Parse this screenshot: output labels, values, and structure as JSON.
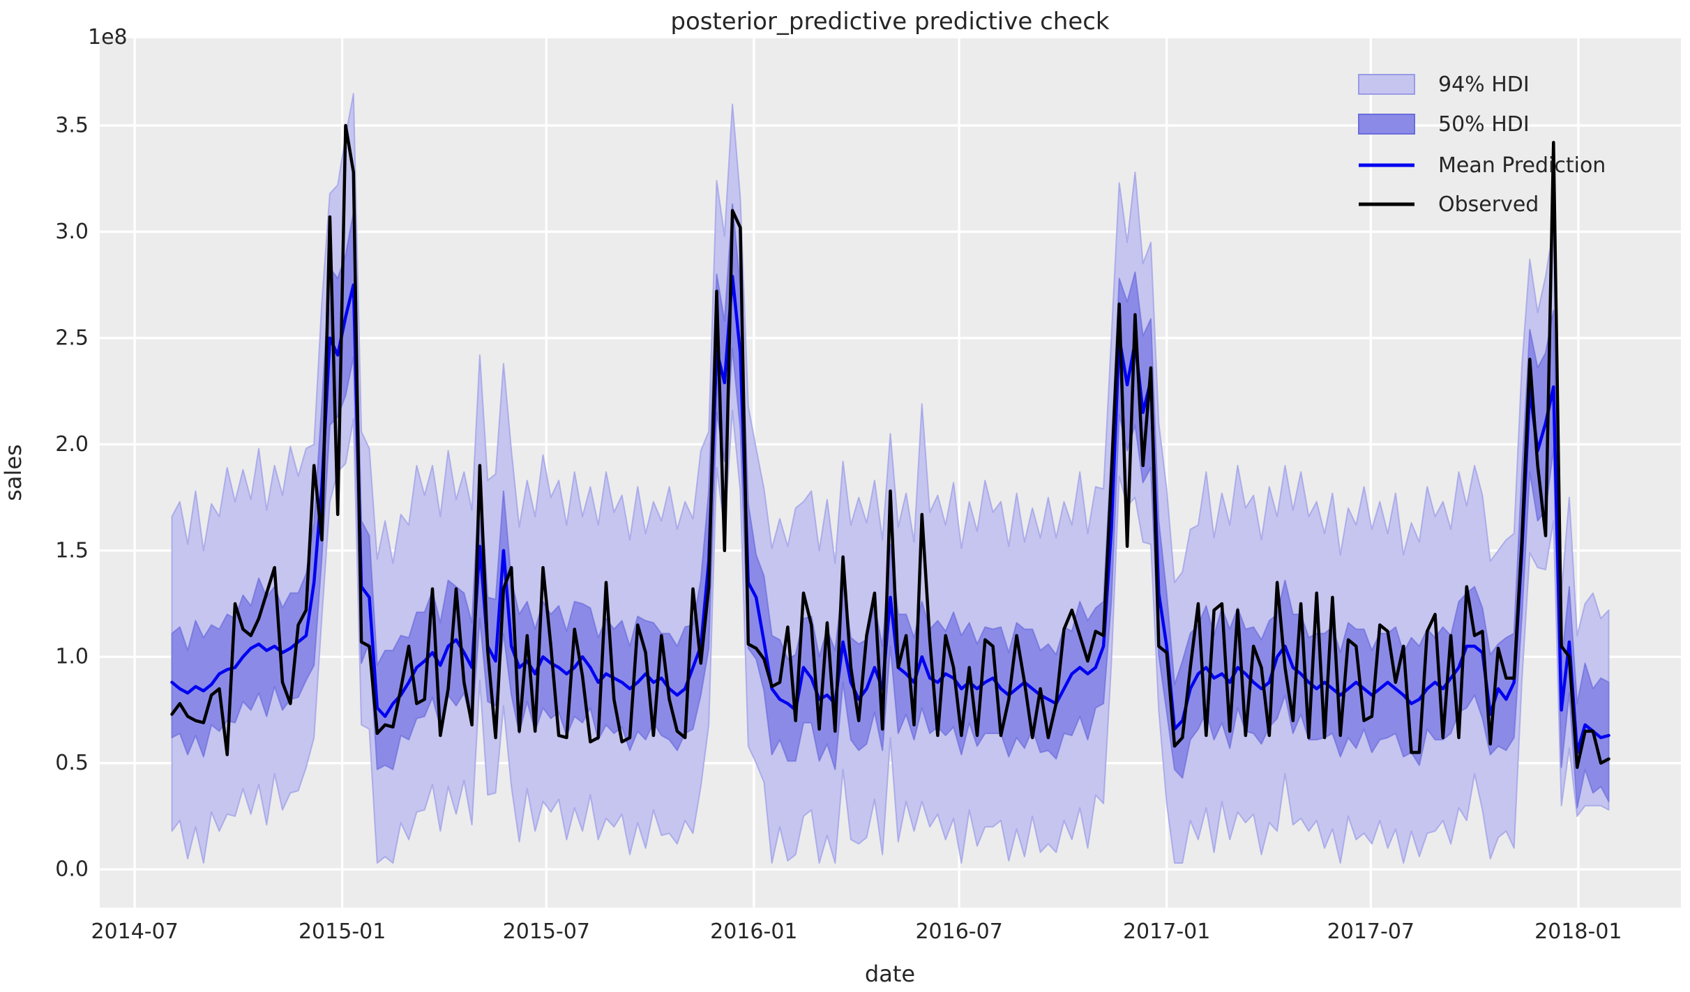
{
  "figure": {
    "title": "posterior_predictive predictive check"
  },
  "colors": {
    "background": "#ffffff",
    "axes_bg": "#ececec",
    "grid": "#ffffff",
    "hdi94_fill": "#c5c5ef",
    "hdi94_edge": "#9a9ae8",
    "hdi50_fill": "#8b8be7",
    "hdi50_edge": "#6b6bdd",
    "mean_line": "#0101f0",
    "observed_line": "#000000",
    "text": "#262626"
  },
  "chart_data": {
    "type": "line",
    "title": "posterior_predictive predictive check",
    "xlabel": "date",
    "ylabel": "sales",
    "y_offset_text": "1e8",
    "grid": true,
    "legend_position": "upper right",
    "value_unit": 100000000,
    "x_axis_origin_date": "2014-07-01",
    "x_start_day_offset": 33,
    "x_freq_days": 7,
    "n_points": 183,
    "xlim_days": [
      -31,
      1371
    ],
    "ylim": [
      -0.18,
      3.91
    ],
    "x_ticks": [
      {
        "label": "2014-07",
        "day": 0
      },
      {
        "label": "2015-01",
        "day": 184
      },
      {
        "label": "2015-07",
        "day": 365
      },
      {
        "label": "2016-01",
        "day": 549
      },
      {
        "label": "2016-07",
        "day": 731
      },
      {
        "label": "2017-01",
        "day": 915
      },
      {
        "label": "2017-07",
        "day": 1096
      },
      {
        "label": "2018-01",
        "day": 1280
      }
    ],
    "y_tick_labels": [
      "0.0",
      "0.5",
      "1.0",
      "1.5",
      "2.0",
      "2.5",
      "3.0",
      "3.5"
    ],
    "legend": [
      {
        "label": "94% HDI",
        "marker": "patch",
        "color": "#c5c5ef",
        "edge": "#9a9ae8"
      },
      {
        "label": "50% HDI",
        "marker": "patch",
        "color": "#8b8be7",
        "edge": "#6b6bdd"
      },
      {
        "label": "Mean Prediction",
        "marker": "line",
        "color": "#0101f0"
      },
      {
        "label": "Observed",
        "marker": "line",
        "color": "#000000"
      }
    ],
    "series": {
      "observed": [
        0.73,
        0.78,
        0.72,
        0.7,
        0.69,
        0.82,
        0.85,
        0.54,
        1.25,
        1.13,
        1.1,
        1.18,
        1.3,
        1.42,
        0.88,
        0.78,
        1.15,
        1.22,
        1.9,
        1.55,
        3.07,
        1.67,
        3.5,
        3.28,
        1.07,
        1.05,
        0.64,
        0.68,
        0.67,
        0.85,
        1.05,
        0.78,
        0.8,
        1.32,
        0.63,
        0.85,
        1.32,
        0.88,
        0.68,
        1.9,
        1.03,
        0.62,
        1.32,
        1.42,
        0.65,
        1.1,
        0.65,
        1.42,
        1.05,
        0.63,
        0.62,
        1.13,
        0.91,
        0.6,
        0.62,
        1.35,
        0.8,
        0.6,
        0.62,
        1.15,
        1.02,
        0.63,
        1.1,
        0.8,
        0.65,
        0.62,
        1.32,
        0.97,
        1.33,
        2.72,
        1.5,
        3.1,
        3.02,
        1.06,
        1.04,
        0.99,
        0.86,
        0.88,
        1.14,
        0.7,
        1.3,
        1.15,
        0.66,
        1.16,
        0.65,
        1.47,
        0.95,
        0.7,
        1.1,
        1.3,
        0.66,
        1.78,
        0.95,
        1.1,
        0.68,
        1.67,
        1.08,
        0.63,
        1.1,
        0.95,
        0.63,
        0.95,
        0.63,
        1.08,
        1.05,
        0.63,
        0.8,
        1.1,
        0.88,
        0.62,
        0.85,
        0.62,
        0.78,
        1.13,
        1.22,
        1.1,
        0.98,
        1.12,
        1.1,
        1.85,
        2.66,
        1.52,
        2.61,
        1.9,
        2.36,
        1.05,
        1.02,
        0.58,
        0.62,
        0.95,
        1.25,
        0.63,
        1.22,
        1.25,
        0.65,
        1.22,
        0.63,
        1.05,
        0.95,
        0.63,
        1.35,
        0.95,
        0.7,
        1.25,
        0.62,
        1.3,
        0.62,
        1.28,
        0.63,
        1.08,
        1.05,
        0.7,
        0.72,
        1.15,
        1.12,
        0.88,
        1.05,
        0.55,
        0.55,
        1.12,
        1.2,
        0.62,
        1.1,
        0.62,
        1.33,
        1.1,
        1.12,
        0.59,
        1.04,
        0.9,
        0.9,
        1.55,
        2.4,
        1.9,
        1.57,
        3.42,
        1.05,
        1.0,
        0.48,
        0.65,
        0.65,
        0.5,
        0.52
      ],
      "mean_prediction": [
        0.88,
        0.85,
        0.83,
        0.86,
        0.84,
        0.87,
        0.92,
        0.94,
        0.95,
        1.0,
        1.04,
        1.06,
        1.03,
        1.05,
        1.02,
        1.04,
        1.07,
        1.1,
        1.35,
        1.8,
        2.5,
        2.42,
        2.6,
        2.75,
        1.33,
        1.28,
        0.76,
        0.72,
        0.78,
        0.82,
        0.88,
        0.95,
        0.98,
        1.02,
        0.96,
        1.05,
        1.08,
        1.02,
        0.95,
        1.52,
        1.05,
        0.98,
        1.5,
        1.05,
        0.95,
        0.98,
        0.92,
        1.0,
        0.97,
        0.95,
        0.92,
        0.95,
        1.0,
        0.95,
        0.88,
        0.92,
        0.9,
        0.88,
        0.85,
        0.88,
        0.92,
        0.88,
        0.9,
        0.85,
        0.82,
        0.85,
        0.95,
        1.05,
        1.45,
        2.44,
        2.29,
        2.79,
        2.43,
        1.35,
        1.28,
        1.07,
        0.85,
        0.8,
        0.78,
        0.75,
        0.95,
        0.9,
        0.8,
        0.82,
        0.78,
        1.07,
        0.88,
        0.8,
        0.85,
        0.95,
        0.85,
        1.28,
        0.95,
        0.92,
        0.88,
        1.0,
        0.9,
        0.88,
        0.92,
        0.9,
        0.85,
        0.88,
        0.85,
        0.88,
        0.9,
        0.85,
        0.82,
        0.85,
        0.88,
        0.85,
        0.82,
        0.8,
        0.78,
        0.85,
        0.92,
        0.95,
        0.92,
        0.95,
        1.05,
        1.6,
        2.5,
        2.28,
        2.48,
        2.15,
        2.3,
        1.3,
        1.05,
        0.66,
        0.7,
        0.85,
        0.92,
        0.95,
        0.9,
        0.92,
        0.88,
        0.95,
        0.92,
        0.88,
        0.85,
        0.88,
        1.0,
        1.05,
        0.95,
        0.92,
        0.88,
        0.85,
        0.88,
        0.85,
        0.82,
        0.85,
        0.88,
        0.85,
        0.82,
        0.85,
        0.88,
        0.85,
        0.82,
        0.78,
        0.8,
        0.85,
        0.88,
        0.85,
        0.9,
        0.95,
        1.05,
        1.05,
        1.02,
        0.73,
        0.85,
        0.8,
        0.88,
        1.5,
        2.26,
        1.97,
        2.1,
        2.27,
        0.75,
        1.07,
        0.55,
        0.68,
        0.65,
        0.62,
        0.63
      ],
      "hdi50_lower": [
        0.62,
        0.64,
        0.54,
        0.63,
        0.53,
        0.68,
        0.65,
        0.7,
        0.69,
        0.79,
        0.75,
        0.83,
        0.72,
        0.86,
        0.75,
        0.8,
        0.81,
        0.89,
        0.96,
        1.47,
        2.09,
        2.13,
        2.23,
        2.41,
        0.97,
        1.07,
        0.47,
        0.49,
        0.47,
        0.63,
        0.61,
        0.71,
        0.72,
        0.81,
        0.67,
        0.82,
        0.77,
        0.83,
        0.68,
        1.18,
        0.79,
        0.77,
        1.11,
        0.82,
        0.64,
        0.79,
        0.65,
        0.76,
        0.71,
        0.74,
        0.63,
        0.72,
        0.69,
        0.76,
        0.61,
        0.68,
        0.64,
        0.67,
        0.56,
        0.65,
        0.61,
        0.69,
        0.63,
        0.61,
        0.56,
        0.64,
        0.66,
        0.82,
        1.04,
        2.15,
        1.92,
        2.45,
        2.07,
        1.04,
        0.99,
        0.84,
        0.54,
        0.61,
        0.51,
        0.51,
        0.69,
        0.69,
        0.51,
        0.59,
        0.47,
        0.88,
        0.61,
        0.56,
        0.59,
        0.74,
        0.56,
        1.05,
        0.64,
        0.73,
        0.61,
        0.76,
        0.64,
        0.67,
        0.63,
        0.67,
        0.54,
        0.69,
        0.58,
        0.64,
        0.64,
        0.64,
        0.53,
        0.62,
        0.57,
        0.66,
        0.55,
        0.56,
        0.52,
        0.64,
        0.63,
        0.72,
        0.61,
        0.76,
        0.78,
        1.26,
        2.14,
        1.97,
        2.09,
        1.82,
        1.89,
        1.01,
        0.74,
        0.47,
        0.43,
        0.61,
        0.66,
        0.74,
        0.61,
        0.69,
        0.57,
        0.76,
        0.65,
        0.64,
        0.59,
        0.67,
        0.71,
        0.82,
        0.64,
        0.73,
        0.61,
        0.61,
        0.62,
        0.64,
        0.53,
        0.62,
        0.57,
        0.66,
        0.55,
        0.61,
        0.62,
        0.64,
        0.53,
        0.55,
        0.49,
        0.66,
        0.61,
        0.61,
        0.64,
        0.74,
        0.76,
        0.82,
        0.71,
        0.54,
        0.58,
        0.56,
        0.62,
        1.19,
        1.87,
        1.64,
        1.69,
        1.98,
        0.48,
        0.83,
        0.29,
        0.47,
        0.36,
        0.39,
        0.32
      ],
      "hdi50_upper": [
        1.11,
        1.14,
        1.03,
        1.17,
        1.09,
        1.15,
        1.13,
        1.2,
        1.18,
        1.29,
        1.24,
        1.37,
        1.28,
        1.33,
        1.23,
        1.3,
        1.3,
        1.39,
        1.63,
        2.19,
        2.83,
        2.78,
        2.89,
        3.09,
        1.64,
        1.57,
        0.96,
        1.03,
        1.03,
        1.1,
        1.09,
        1.21,
        1.21,
        1.31,
        1.16,
        1.36,
        1.33,
        1.3,
        1.16,
        1.86,
        1.28,
        1.27,
        1.78,
        1.36,
        1.2,
        1.26,
        1.13,
        1.26,
        1.2,
        1.24,
        1.12,
        1.26,
        1.25,
        1.23,
        1.09,
        1.18,
        1.13,
        1.17,
        1.05,
        1.19,
        1.17,
        1.16,
        1.11,
        1.11,
        1.05,
        1.14,
        1.15,
        1.36,
        1.78,
        2.8,
        2.58,
        3.13,
        2.74,
        1.72,
        1.48,
        1.38,
        1.1,
        1.08,
        0.99,
        1.01,
        1.18,
        1.19,
        1.0,
        1.13,
        1.03,
        1.35,
        1.09,
        1.06,
        1.08,
        1.24,
        1.05,
        1.53,
        1.2,
        1.2,
        1.09,
        1.26,
        1.13,
        1.17,
        1.12,
        1.21,
        1.1,
        1.16,
        1.06,
        1.14,
        1.13,
        1.14,
        1.02,
        1.16,
        1.13,
        1.13,
        1.03,
        1.06,
        1.01,
        1.14,
        1.12,
        1.26,
        1.17,
        1.23,
        1.26,
        1.97,
        2.78,
        2.67,
        2.81,
        2.51,
        2.59,
        1.64,
        1.3,
        0.87,
        0.98,
        1.11,
        1.15,
        1.24,
        1.1,
        1.23,
        1.13,
        1.23,
        1.13,
        1.14,
        1.08,
        1.17,
        1.2,
        1.36,
        1.2,
        1.2,
        1.09,
        1.11,
        1.11,
        1.14,
        1.02,
        1.16,
        1.13,
        1.13,
        1.03,
        1.11,
        1.11,
        1.14,
        1.02,
        1.09,
        1.05,
        1.13,
        1.09,
        1.14,
        1.1,
        1.26,
        1.3,
        1.33,
        1.23,
        1.01,
        1.06,
        1.09,
        1.11,
        1.87,
        2.54,
        2.36,
        2.43,
        2.63,
        0.96,
        1.33,
        0.78,
        0.97,
        0.85,
        0.9,
        0.88
      ],
      "hdi94_lower": [
        0.18,
        0.23,
        0.05,
        0.2,
        0.03,
        0.27,
        0.18,
        0.26,
        0.25,
        0.38,
        0.26,
        0.4,
        0.21,
        0.45,
        0.28,
        0.36,
        0.37,
        0.48,
        0.62,
        1.19,
        1.73,
        1.87,
        1.91,
        2.12,
        0.68,
        0.66,
        0.03,
        0.06,
        0.03,
        0.22,
        0.14,
        0.27,
        0.28,
        0.4,
        0.18,
        0.39,
        0.26,
        0.42,
        0.21,
        0.89,
        0.35,
        0.36,
        0.77,
        0.39,
        0.13,
        0.38,
        0.18,
        0.32,
        0.27,
        0.33,
        0.14,
        0.29,
        0.18,
        0.35,
        0.14,
        0.24,
        0.2,
        0.26,
        0.07,
        0.22,
        0.1,
        0.28,
        0.16,
        0.17,
        0.12,
        0.23,
        0.17,
        0.39,
        0.68,
        1.89,
        1.6,
        2.16,
        1.78,
        0.58,
        0.5,
        0.41,
        0.03,
        0.2,
        0.04,
        0.07,
        0.25,
        0.28,
        0.03,
        0.16,
        0.03,
        0.47,
        0.14,
        0.12,
        0.15,
        0.33,
        0.07,
        0.62,
        0.13,
        0.32,
        0.18,
        0.32,
        0.2,
        0.26,
        0.14,
        0.24,
        0.03,
        0.28,
        0.11,
        0.2,
        0.2,
        0.23,
        0.04,
        0.19,
        0.06,
        0.25,
        0.08,
        0.12,
        0.08,
        0.23,
        0.14,
        0.29,
        0.1,
        0.35,
        0.31,
        0.97,
        1.85,
        1.71,
        1.75,
        1.54,
        1.53,
        0.75,
        0.31,
        0.03,
        0.03,
        0.23,
        0.14,
        0.29,
        0.08,
        0.32,
        0.14,
        0.27,
        0.22,
        0.26,
        0.07,
        0.22,
        0.18,
        0.45,
        0.21,
        0.24,
        0.18,
        0.23,
        0.1,
        0.19,
        0.03,
        0.25,
        0.14,
        0.17,
        0.12,
        0.23,
        0.1,
        0.19,
        0.03,
        0.18,
        0.06,
        0.17,
        0.18,
        0.23,
        0.12,
        0.29,
        0.23,
        0.45,
        0.28,
        0.05,
        0.15,
        0.18,
        0.1,
        0.89,
        1.49,
        1.42,
        1.41,
        1.64,
        0.3,
        0.57,
        0.25,
        0.3,
        0.3,
        0.3,
        0.28
      ],
      "hdi94_upper": [
        1.66,
        1.73,
        1.53,
        1.78,
        1.5,
        1.72,
        1.66,
        1.89,
        1.73,
        1.88,
        1.74,
        1.98,
        1.69,
        1.9,
        1.76,
        1.99,
        1.85,
        1.98,
        2.0,
        2.67,
        3.18,
        3.22,
        3.45,
        3.65,
        2.06,
        1.98,
        1.46,
        1.64,
        1.44,
        1.67,
        1.62,
        1.9,
        1.76,
        1.9,
        1.66,
        1.97,
        1.74,
        1.87,
        1.69,
        2.42,
        1.83,
        1.86,
        2.38,
        1.97,
        1.61,
        1.83,
        1.66,
        1.95,
        1.75,
        1.83,
        1.62,
        1.87,
        1.66,
        1.8,
        1.62,
        1.87,
        1.68,
        1.76,
        1.55,
        1.8,
        1.58,
        1.73,
        1.64,
        1.8,
        1.6,
        1.73,
        1.65,
        1.97,
        2.06,
        3.24,
        2.98,
        3.6,
        3.16,
        2.18,
        1.98,
        1.79,
        1.51,
        1.65,
        1.52,
        1.7,
        1.73,
        1.78,
        1.5,
        1.74,
        1.44,
        1.92,
        1.62,
        1.75,
        1.63,
        1.83,
        1.55,
        2.05,
        1.61,
        1.77,
        1.54,
        2.19,
        1.68,
        1.76,
        1.62,
        1.82,
        1.51,
        1.73,
        1.59,
        1.83,
        1.68,
        1.73,
        1.52,
        1.77,
        1.54,
        1.7,
        1.56,
        1.75,
        1.56,
        1.73,
        1.62,
        1.87,
        1.58,
        1.8,
        1.79,
        2.5,
        3.23,
        2.95,
        3.28,
        2.85,
        2.95,
        2.1,
        1.79,
        1.35,
        1.4,
        1.6,
        1.62,
        1.87,
        1.56,
        1.77,
        1.62,
        1.9,
        1.7,
        1.76,
        1.55,
        1.8,
        1.66,
        1.9,
        1.69,
        1.87,
        1.66,
        1.73,
        1.58,
        1.77,
        1.48,
        1.7,
        1.62,
        1.8,
        1.6,
        1.73,
        1.58,
        1.77,
        1.48,
        1.63,
        1.54,
        1.8,
        1.66,
        1.73,
        1.6,
        1.87,
        1.71,
        1.9,
        1.76,
        1.45,
        1.5,
        1.55,
        1.58,
        2.37,
        2.87,
        2.62,
        2.79,
        3.02,
        1.3,
        1.75,
        1.1,
        1.25,
        1.3,
        1.18,
        1.22
      ]
    }
  }
}
